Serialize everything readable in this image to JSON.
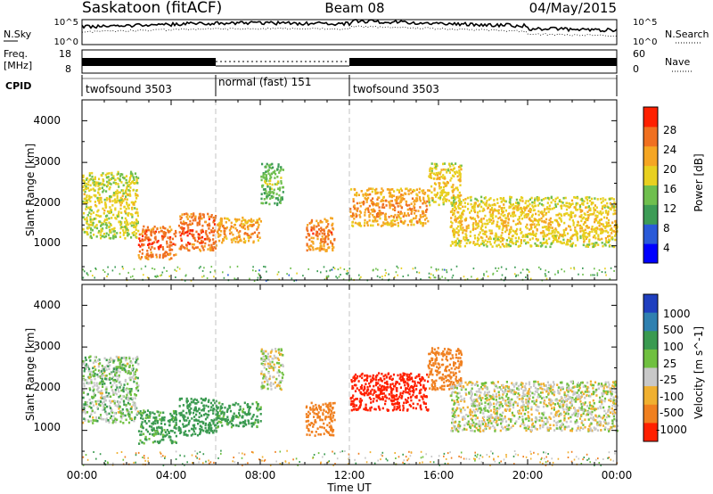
{
  "header": {
    "station": "Saskatoon (fitACF)",
    "beam": "Beam 08",
    "date": "04/May/2015"
  },
  "panels": {
    "nsky_label": "N.Sky",
    "nsky_ticks": [
      "10^5",
      "10^0"
    ],
    "nsearch_label": "N.Search",
    "nsearch_ticks": [
      "10^5",
      "10^0"
    ],
    "freq_label_1": "Freq.",
    "freq_label_2": "[MHz]",
    "freq_ticks": [
      "18",
      "8"
    ],
    "nave_label": "Nave",
    "nave_ticks": [
      "60",
      "0"
    ],
    "cpid_label": "CPID",
    "modes": [
      {
        "label": "twofsound 3503",
        "start": 0,
        "end": 6.0
      },
      {
        "label": "normal (fast) 151",
        "start": 6.0,
        "end": 12.0
      },
      {
        "label": "twofsound 3503",
        "start": 12.0,
        "end": 24.0
      }
    ]
  },
  "power_panel": {
    "ylabel": "Slant Range [km]",
    "yticks": [
      "4000",
      "3000",
      "2000",
      "1000"
    ],
    "colorbar_label": "Power [dB]",
    "colorbar_ticks": [
      "28",
      "24",
      "20",
      "16",
      "12",
      "8",
      "4"
    ],
    "colors": [
      "#0000ff",
      "#2a5ad8",
      "#3d9c56",
      "#6fbf4e",
      "#e8d020",
      "#f5a623",
      "#f07020",
      "#ff2000"
    ]
  },
  "velocity_panel": {
    "ylabel": "Slant Range [km]",
    "yticks": [
      "4000",
      "3000",
      "2000",
      "1000"
    ],
    "colorbar_label": "Velocity [m s^-1]",
    "colorbar_ticks": [
      "1000",
      "500",
      "100",
      "25",
      "-25",
      "-100",
      "-500",
      "-1000"
    ],
    "colors": [
      "#1f3fbf",
      "#2f80b0",
      "#3a9a50",
      "#70c040",
      "#c8c8c8",
      "#f0b030",
      "#f08020",
      "#ff2000"
    ]
  },
  "xaxis": {
    "label": "Time UT",
    "ticks": [
      "00:00",
      "04:00",
      "08:00",
      "12:00",
      "16:00",
      "20:00",
      "00:00"
    ]
  },
  "chart_data": {
    "type": "heatmap",
    "title": "Saskatoon (fitACF)",
    "subtitle": "Beam 08",
    "date": "04/May/2015",
    "xlabel": "Time UT",
    "ylabel": "Slant Range [km]",
    "x_range_hours": [
      0,
      24
    ],
    "y_range_km": [
      180,
      4500
    ],
    "power_scale_db": [
      0,
      30
    ],
    "velocity_scale_ms": [
      -1000,
      1000
    ],
    "scatter_features": [
      {
        "start_h": 0.0,
        "end_h": 2.5,
        "range_km": [
          1200,
          2800
        ],
        "power_db": 18,
        "velocity_ms": 30
      },
      {
        "start_h": 2.5,
        "end_h": 4.2,
        "range_km": [
          700,
          1500
        ],
        "power_db": 28,
        "velocity_ms": 100
      },
      {
        "start_h": 4.3,
        "end_h": 6.0,
        "range_km": [
          900,
          1800
        ],
        "power_db": 28,
        "velocity_ms": 120
      },
      {
        "start_h": 6.0,
        "end_h": 8.0,
        "range_km": [
          1100,
          1700
        ],
        "power_db": 24,
        "velocity_ms": 100
      },
      {
        "start_h": 8.0,
        "end_h": 9.0,
        "range_km": [
          2000,
          3000
        ],
        "power_db": 14,
        "velocity_ms": 0
      },
      {
        "start_h": 10.0,
        "end_h": 11.3,
        "range_km": [
          900,
          1700
        ],
        "power_db": 26,
        "velocity_ms": -200
      },
      {
        "start_h": 12.0,
        "end_h": 15.5,
        "range_km": [
          1500,
          2400
        ],
        "power_db": 24,
        "velocity_ms": -600
      },
      {
        "start_h": 15.5,
        "end_h": 17.0,
        "range_km": [
          2000,
          3000
        ],
        "power_db": 20,
        "velocity_ms": -400
      },
      {
        "start_h": 16.5,
        "end_h": 24.0,
        "range_km": [
          1000,
          2200
        ],
        "power_db": 20,
        "velocity_ms": 0
      }
    ]
  }
}
